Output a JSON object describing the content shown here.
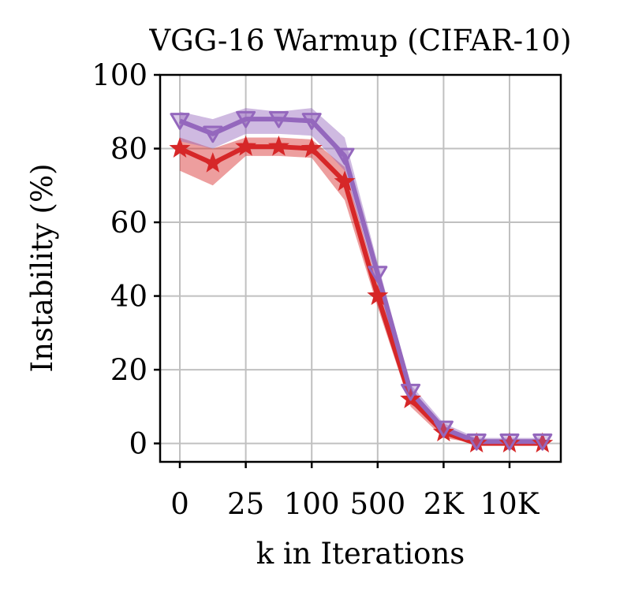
{
  "chart_data": {
    "type": "line",
    "title": "VGG-16 Warmup (CIFAR-10)",
    "xlabel": "k in Iterations",
    "ylabel": "Instability (%)",
    "ylim": [
      -5,
      100
    ],
    "yticks": [
      0,
      20,
      40,
      60,
      80,
      100
    ],
    "xticks": [
      {
        "pos": 0,
        "label": "0"
      },
      {
        "pos": 2,
        "label": "25"
      },
      {
        "pos": 4,
        "label": "100"
      },
      {
        "pos": 6,
        "label": "500"
      },
      {
        "pos": 8,
        "label": "2K"
      },
      {
        "pos": 10,
        "label": "10K"
      }
    ],
    "x": [
      0,
      1,
      2,
      3,
      4,
      5,
      6,
      7,
      8,
      9,
      10,
      11
    ],
    "grid": true,
    "series": [
      {
        "name": "red",
        "color": "#d62728",
        "marker": "star",
        "values": [
          80,
          76,
          80.5,
          80.5,
          80,
          71,
          40,
          12,
          3,
          0,
          0,
          0
        ],
        "lower": [
          74,
          70,
          78,
          78,
          77.5,
          66,
          37,
          10,
          1.5,
          0,
          0,
          0
        ],
        "upper": [
          83,
          80,
          83,
          83,
          82.5,
          75,
          43,
          14,
          4.5,
          0.5,
          0.5,
          0.5
        ]
      },
      {
        "name": "purple",
        "color": "#9467bd",
        "marker": "triangle-down",
        "values": [
          87.5,
          84,
          88,
          88,
          87.5,
          78,
          46,
          14,
          4,
          0.5,
          0.5,
          0.5
        ],
        "lower": [
          82,
          80,
          84,
          84,
          83.5,
          74,
          43,
          12,
          2.5,
          0,
          0,
          0
        ],
        "upper": [
          90,
          88,
          91,
          90,
          91,
          83,
          49,
          16,
          5.5,
          1.5,
          1.5,
          1.5
        ]
      }
    ]
  }
}
